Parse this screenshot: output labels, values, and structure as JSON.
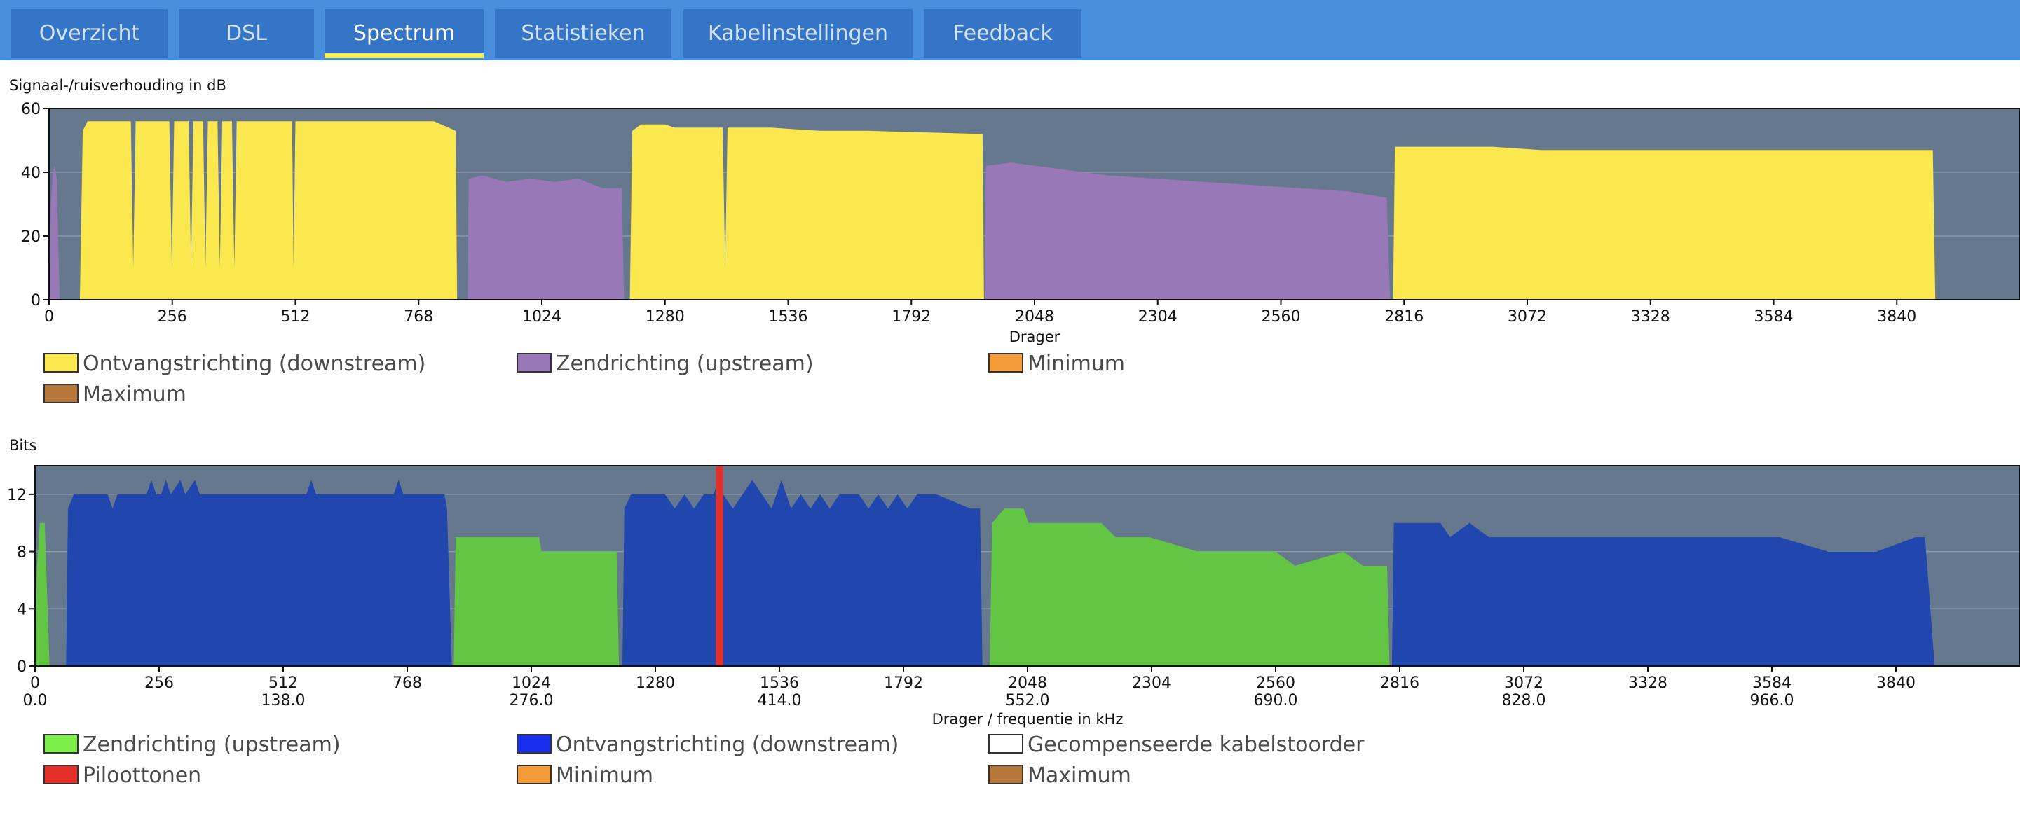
{
  "tabs": [
    {
      "label": "Overzicht",
      "active": false
    },
    {
      "label": "DSL",
      "active": false
    },
    {
      "label": "Spectrum",
      "active": true
    },
    {
      "label": "Statistieken",
      "active": false
    },
    {
      "label": "Kabelinstellingen",
      "active": false
    },
    {
      "label": "Feedback",
      "active": false
    }
  ],
  "colors": {
    "tabbar": "#4a8ede",
    "tab": "#3575c7",
    "active_underline": "#f6ee4a",
    "plot_bg": "#66788d",
    "snr_down": "#fbe84f",
    "snr_up": "#9978b8",
    "bits_up": "#63c544",
    "bits_down": "#2146ad",
    "pilot": "#e3312a",
    "legend_minimum": "#f29b38",
    "legend_maximum": "#b5783a"
  },
  "snr_chart": {
    "ylabel": "Signaal-/ruisverhouding in dB",
    "xlabel": "Drager",
    "legend": [
      {
        "label": "Ontvangstrichting (downstream)",
        "color": "#fbe84f"
      },
      {
        "label": "Zendrichting (upstream)",
        "color": "#9978b8"
      },
      {
        "label": "Minimum",
        "color": "#f29b38"
      },
      {
        "label": "Maximum",
        "color": "#b5783a"
      }
    ]
  },
  "bits_chart": {
    "ylabel": "Bits",
    "xlabel": "Drager / frequentie in kHz",
    "legend": [
      {
        "label": "Zendrichting (upstream)",
        "color": "#7cee4a"
      },
      {
        "label": "Ontvangstrichting (downstream)",
        "color": "#1a2ef0"
      },
      {
        "label": "Gecompenseerde kabelstoorder",
        "color": "#ffffff"
      },
      {
        "label": "Piloottonen",
        "color": "#e3312a"
      },
      {
        "label": "Minimum",
        "color": "#f29b38"
      },
      {
        "label": "Maximum",
        "color": "#b5783a"
      }
    ]
  },
  "chart_data": [
    {
      "type": "area",
      "ylabel": "Signaal-/ruisverhouding in dB",
      "xlabel": "Drager",
      "xlim": [
        0,
        4096
      ],
      "ylim": [
        0,
        60
      ],
      "x_ticks": [
        0,
        256,
        512,
        768,
        1024,
        1280,
        1536,
        1792,
        2048,
        2304,
        2560,
        2816,
        3072,
        3328,
        3584,
        3840
      ],
      "y_ticks": [
        0,
        20,
        40,
        60
      ],
      "grid": true,
      "series": [
        {
          "name": "Zendrichting (upstream)",
          "color": "#9978b8",
          "points": [
            [
              0,
              0
            ],
            [
              4,
              30
            ],
            [
              8,
              40
            ],
            [
              12,
              42
            ],
            [
              16,
              38
            ],
            [
              22,
              0
            ],
            [
              870,
              0
            ],
            [
              872,
              38
            ],
            [
              900,
              39
            ],
            [
              950,
              37
            ],
            [
              1000,
              38
            ],
            [
              1050,
              37
            ],
            [
              1100,
              38
            ],
            [
              1150,
              35
            ],
            [
              1190,
              35
            ],
            [
              1195,
              0
            ],
            [
              1945,
              0
            ],
            [
              1947,
              42
            ],
            [
              2000,
              43
            ],
            [
              2100,
              41
            ],
            [
              2200,
              39
            ],
            [
              2300,
              38
            ],
            [
              2400,
              37
            ],
            [
              2500,
              36
            ],
            [
              2600,
              35
            ],
            [
              2700,
              34
            ],
            [
              2780,
              32
            ],
            [
              2787,
              0
            ]
          ]
        },
        {
          "name": "Ontvangstrichting (downstream)",
          "color": "#fbe84f",
          "points": [
            [
              64,
              0
            ],
            [
              70,
              53
            ],
            [
              80,
              56
            ],
            [
              170,
              56
            ],
            [
              175,
              10
            ],
            [
              180,
              56
            ],
            [
              250,
              56
            ],
            [
              255,
              10
            ],
            [
              260,
              56
            ],
            [
              290,
              56
            ],
            [
              295,
              10
            ],
            [
              300,
              56
            ],
            [
              320,
              56
            ],
            [
              325,
              10
            ],
            [
              330,
              56
            ],
            [
              350,
              56
            ],
            [
              355,
              10
            ],
            [
              360,
              56
            ],
            [
              380,
              56
            ],
            [
              385,
              10
            ],
            [
              390,
              56
            ],
            [
              505,
              56
            ],
            [
              508,
              10
            ],
            [
              512,
              56
            ],
            [
              600,
              56
            ],
            [
              700,
              56
            ],
            [
              780,
              56
            ],
            [
              800,
              56
            ],
            [
              845,
              53
            ],
            [
              848,
              0
            ],
            [
              1207,
              0
            ],
            [
              1212,
              53
            ],
            [
              1230,
              55
            ],
            [
              1280,
              55
            ],
            [
              1300,
              54
            ],
            [
              1400,
              54
            ],
            [
              1405,
              10
            ],
            [
              1410,
              54
            ],
            [
              1500,
              54
            ],
            [
              1600,
              53
            ],
            [
              1700,
              53
            ],
            [
              1940,
              52
            ],
            [
              1943,
              0
            ],
            [
              2793,
              0
            ],
            [
              2797,
              48
            ],
            [
              2830,
              48
            ],
            [
              2900,
              48
            ],
            [
              3000,
              48
            ],
            [
              3100,
              47
            ],
            [
              3200,
              47
            ],
            [
              3300,
              47
            ],
            [
              3400,
              47
            ],
            [
              3500,
              47
            ],
            [
              3600,
              47
            ],
            [
              3800,
              47
            ],
            [
              3915,
              47
            ],
            [
              3920,
              0
            ]
          ]
        }
      ]
    },
    {
      "type": "area",
      "ylabel": "Bits",
      "xlabel": "Drager / frequentie in kHz",
      "xlim": [
        0,
        4096
      ],
      "ylim": [
        0,
        14
      ],
      "x_ticks": [
        0,
        256,
        512,
        768,
        1024,
        1280,
        1536,
        1792,
        2048,
        2304,
        2560,
        2816,
        3072,
        3328,
        3584,
        3840
      ],
      "x_ticks_khz": [
        "0.0",
        "138.0",
        "276.0",
        "414.0",
        "552.0",
        "690.0",
        "828.0",
        "966.0"
      ],
      "y_ticks": [
        0,
        4,
        8,
        12
      ],
      "grid": true,
      "series": [
        {
          "name": "Zendrichting (upstream)",
          "color": "#63c544",
          "points": [
            [
              0,
              0
            ],
            [
              4,
              7
            ],
            [
              10,
              10
            ],
            [
              20,
              10
            ],
            [
              30,
              0
            ],
            [
              864,
              0
            ],
            [
              868,
              9
            ],
            [
              1000,
              9
            ],
            [
              1040,
              9
            ],
            [
              1045,
              8
            ],
            [
              1100,
              8
            ],
            [
              1200,
              8
            ],
            [
              1205,
              0
            ],
            [
              1970,
              0
            ],
            [
              1975,
              10
            ],
            [
              2000,
              11
            ],
            [
              2040,
              11
            ],
            [
              2050,
              10
            ],
            [
              2100,
              10
            ],
            [
              2200,
              10
            ],
            [
              2230,
              9
            ],
            [
              2300,
              9
            ],
            [
              2400,
              8
            ],
            [
              2500,
              8
            ],
            [
              2560,
              8
            ],
            [
              2600,
              7
            ],
            [
              2700,
              8
            ],
            [
              2740,
              7
            ],
            [
              2790,
              7
            ],
            [
              2795,
              0
            ]
          ]
        },
        {
          "name": "Ontvangstrichting (downstream)",
          "color": "#2146ad",
          "points": [
            [
              64,
              0
            ],
            [
              68,
              11
            ],
            [
              80,
              12
            ],
            [
              150,
              12
            ],
            [
              160,
              11
            ],
            [
              170,
              12
            ],
            [
              230,
              12
            ],
            [
              240,
              13
            ],
            [
              250,
              12
            ],
            [
              260,
              12
            ],
            [
              270,
              13
            ],
            [
              280,
              12
            ],
            [
              300,
              13
            ],
            [
              310,
              12
            ],
            [
              330,
              13
            ],
            [
              340,
              12
            ],
            [
              380,
              12
            ],
            [
              400,
              12
            ],
            [
              420,
              12
            ],
            [
              540,
              12
            ],
            [
              560,
              12
            ],
            [
              570,
              13
            ],
            [
              580,
              12
            ],
            [
              600,
              12
            ],
            [
              740,
              12
            ],
            [
              750,
              13
            ],
            [
              760,
              12
            ],
            [
              845,
              12
            ],
            [
              850,
              11
            ],
            [
              860,
              0
            ],
            [
              1212,
              0
            ],
            [
              1216,
              11
            ],
            [
              1230,
              12
            ],
            [
              1300,
              12
            ],
            [
              1320,
              11
            ],
            [
              1340,
              12
            ],
            [
              1360,
              11
            ],
            [
              1380,
              12
            ],
            [
              1400,
              12
            ],
            [
              1410,
              13
            ],
            [
              1420,
              12
            ],
            [
              1440,
              11
            ],
            [
              1460,
              12
            ],
            [
              1480,
              13
            ],
            [
              1500,
              12
            ],
            [
              1520,
              11
            ],
            [
              1540,
              13
            ],
            [
              1560,
              11
            ],
            [
              1580,
              12
            ],
            [
              1600,
              11
            ],
            [
              1620,
              12
            ],
            [
              1640,
              11
            ],
            [
              1660,
              12
            ],
            [
              1700,
              12
            ],
            [
              1720,
              11
            ],
            [
              1740,
              12
            ],
            [
              1760,
              11
            ],
            [
              1780,
              12
            ],
            [
              1800,
              11
            ],
            [
              1820,
              12
            ],
            [
              1860,
              12
            ],
            [
              1930,
              11
            ],
            [
              1950,
              11
            ],
            [
              1955,
              0
            ],
            [
              2800,
              0
            ],
            [
              2804,
              10
            ],
            [
              2900,
              10
            ],
            [
              2920,
              9
            ],
            [
              2960,
              10
            ],
            [
              3000,
              9
            ],
            [
              3100,
              9
            ],
            [
              3200,
              9
            ],
            [
              3300,
              9
            ],
            [
              3400,
              9
            ],
            [
              3600,
              9
            ],
            [
              3700,
              8
            ],
            [
              3800,
              8
            ],
            [
              3880,
              9
            ],
            [
              3900,
              9
            ],
            [
              3920,
              0
            ]
          ]
        },
        {
          "name": "Piloottonen",
          "color": "#e3312a",
          "points": [
            [
              1405,
              0
            ],
            [
              1405,
              14
            ],
            [
              1420,
              14
            ],
            [
              1420,
              0
            ]
          ]
        }
      ]
    }
  ]
}
